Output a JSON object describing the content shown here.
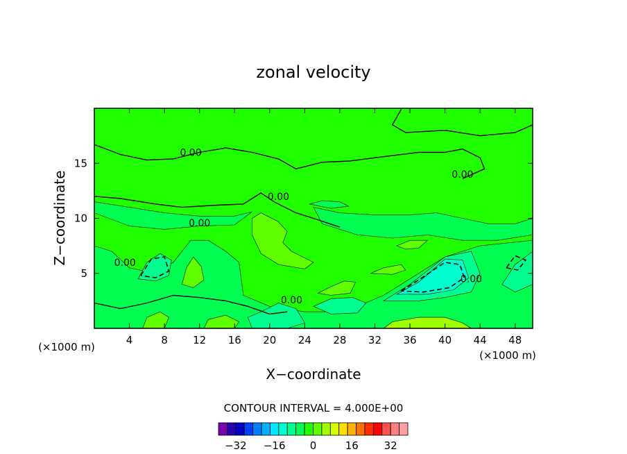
{
  "chart_data": {
    "type": "contour",
    "title": "zonal velocity",
    "xlabel": "X−coordinate",
    "ylabel": "Z−coordinate",
    "x_unit_label": "(×1000 m)",
    "y_unit_label": "(×1000 m)",
    "xlim": [
      0,
      50
    ],
    "ylim": [
      0,
      20
    ],
    "x_ticks": [
      4,
      8,
      12,
      16,
      20,
      24,
      28,
      32,
      36,
      40,
      44,
      48
    ],
    "y_ticks": [
      5,
      10,
      15
    ],
    "contour_interval_label": "CONTOUR INTERVAL = 4.000E+00",
    "contour_labels": [
      {
        "text": "0.00",
        "x": 11,
        "z": 16.0
      },
      {
        "text": "0.00",
        "x": 12,
        "z": 9.6
      },
      {
        "text": "0.00",
        "x": 42,
        "z": 14.0
      },
      {
        "text": "0.00",
        "x": 3.5,
        "z": 6.0
      },
      {
        "text": "0.00",
        "x": 21,
        "z": 12.0
      },
      {
        "text": "0.00",
        "x": 22.5,
        "z": 2.6
      },
      {
        "text": "0.00",
        "x": 43,
        "z": 4.5
      }
    ],
    "colorbar": {
      "ticks": [
        "−32",
        "−16",
        "0",
        "16",
        "32"
      ],
      "colors": [
        "#7a00b0",
        "#2a00b0",
        "#0000c8",
        "#0040ff",
        "#0080ff",
        "#00b0ff",
        "#00e8ff",
        "#00ffd0",
        "#00ff90",
        "#00ff50",
        "#20ff00",
        "#60ff00",
        "#a0ff00",
        "#d8ff00",
        "#ffe000",
        "#ffb000",
        "#ff7000",
        "#ff3000",
        "#ff0000",
        "#ff5050",
        "#ff8080",
        "#ffa0a0"
      ]
    },
    "field_colors": {
      "background": "#20ff00",
      "weak_positive": "#60ff00",
      "positive": "#a0ff00",
      "weak_negative": "#00ff50",
      "negative": "#00ff90",
      "strong_negative": "#00ffd0"
    }
  }
}
